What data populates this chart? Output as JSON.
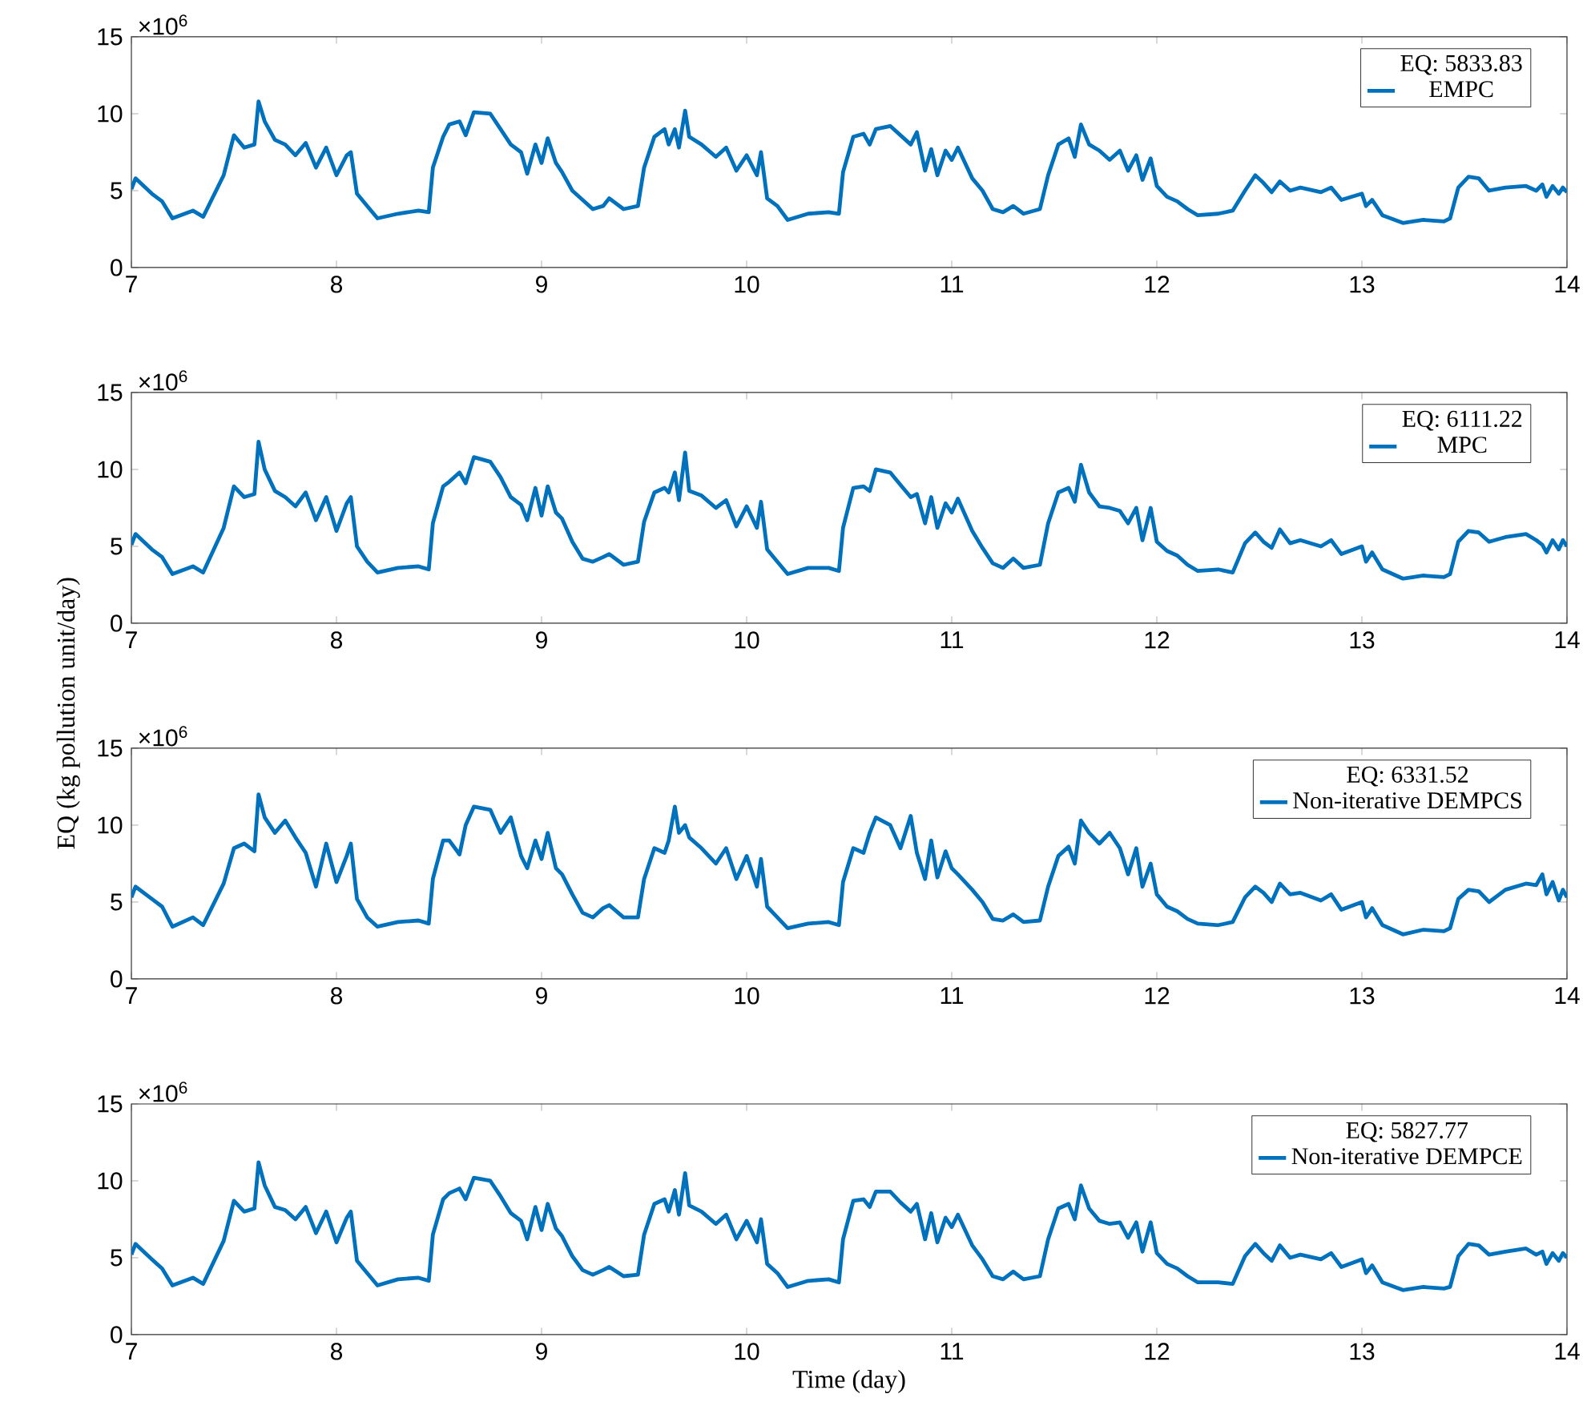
{
  "chart_data": [
    {
      "type": "line",
      "legend": "top right",
      "legend_title": "EQ: 5833.83",
      "annotations": [
        "×10$^{6}$"
      ],
      "xlim": [
        7,
        14
      ],
      "ylim": [
        0,
        15
      ],
      "xticks": [
        7,
        8,
        9,
        10,
        11,
        12,
        13,
        14
      ],
      "yticks": [
        0,
        5,
        10,
        15
      ],
      "x": [
        7.0,
        7.02,
        7.1,
        7.15,
        7.2,
        7.3,
        7.35,
        7.45,
        7.5,
        7.55,
        7.6,
        7.62,
        7.65,
        7.7,
        7.75,
        7.8,
        7.85,
        7.9,
        7.95,
        8.0,
        8.05,
        8.07,
        8.1,
        8.15,
        8.2,
        8.3,
        8.4,
        8.45,
        8.47,
        8.52,
        8.55,
        8.6,
        8.63,
        8.67,
        8.75,
        8.8,
        8.85,
        8.9,
        8.93,
        8.97,
        9.0,
        9.03,
        9.07,
        9.1,
        9.15,
        9.2,
        9.25,
        9.3,
        9.33,
        9.4,
        9.47,
        9.5,
        9.55,
        9.6,
        9.62,
        9.65,
        9.67,
        9.7,
        9.72,
        9.78,
        9.85,
        9.9,
        9.95,
        10.0,
        10.05,
        10.07,
        10.1,
        10.15,
        10.2,
        10.3,
        10.4,
        10.45,
        10.47,
        10.52,
        10.57,
        10.6,
        10.63,
        10.7,
        10.75,
        10.8,
        10.83,
        10.87,
        10.9,
        10.93,
        10.97,
        11.0,
        11.03,
        11.1,
        11.15,
        11.2,
        11.25,
        11.3,
        11.35,
        11.43,
        11.47,
        11.52,
        11.57,
        11.6,
        11.63,
        11.67,
        11.72,
        11.77,
        11.82,
        11.86,
        11.9,
        11.93,
        11.97,
        12.0,
        12.05,
        12.1,
        12.15,
        12.2,
        12.3,
        12.37,
        12.43,
        12.48,
        12.52,
        12.56,
        12.6,
        12.65,
        12.7,
        12.8,
        12.85,
        12.9,
        13.0,
        13.02,
        13.05,
        13.1,
        13.2,
        13.3,
        13.4,
        13.43,
        13.47,
        13.52,
        13.57,
        13.62,
        13.7,
        13.8,
        13.85,
        13.88,
        13.9,
        13.93,
        13.96,
        13.98,
        14.0
      ],
      "series": [
        {
          "name": "EMPC",
          "color": "#0072bd",
          "values": [
            5.1,
            5.8,
            4.8,
            4.3,
            3.2,
            3.7,
            3.3,
            6.0,
            8.6,
            7.8,
            8.0,
            10.8,
            9.5,
            8.3,
            8.0,
            7.3,
            8.1,
            6.5,
            7.8,
            6.0,
            7.3,
            7.5,
            4.8,
            4.0,
            3.2,
            3.5,
            3.7,
            3.6,
            6.5,
            8.5,
            9.3,
            9.5,
            8.6,
            10.1,
            10.0,
            9.0,
            8.0,
            7.5,
            6.1,
            8.0,
            6.8,
            8.4,
            6.8,
            6.2,
            5.0,
            4.4,
            3.8,
            4.0,
            4.5,
            3.8,
            4.0,
            6.5,
            8.5,
            9.0,
            8.0,
            9.0,
            7.8,
            10.2,
            8.5,
            8.0,
            7.2,
            7.8,
            6.3,
            7.3,
            6.0,
            7.5,
            4.5,
            4.0,
            3.1,
            3.5,
            3.6,
            3.5,
            6.2,
            8.5,
            8.7,
            8.0,
            9.0,
            9.2,
            8.6,
            8.0,
            8.8,
            6.3,
            7.7,
            6.0,
            7.6,
            7.0,
            7.8,
            5.8,
            5.0,
            3.8,
            3.6,
            4.0,
            3.5,
            3.8,
            6.0,
            8.0,
            8.4,
            7.2,
            9.3,
            8.0,
            7.6,
            7.0,
            7.6,
            6.3,
            7.3,
            5.7,
            7.1,
            5.3,
            4.6,
            4.3,
            3.8,
            3.4,
            3.5,
            3.7,
            5.0,
            6.0,
            5.5,
            4.9,
            5.6,
            5.0,
            5.2,
            4.9,
            5.2,
            4.4,
            4.8,
            4.0,
            4.4,
            3.4,
            2.9,
            3.1,
            3.0,
            3.2,
            5.2,
            5.9,
            5.8,
            5.0,
            5.2,
            5.3,
            5.0,
            5.4,
            4.6,
            5.3,
            4.8,
            5.2,
            4.9
          ]
        }
      ]
    },
    {
      "type": "line",
      "legend": "top right",
      "legend_title": "EQ: 6111.22",
      "annotations": [
        "×10$^{6}$"
      ],
      "ylabel": "EQ (kg pollution unit/day)",
      "xlim": [
        7,
        14
      ],
      "ylim": [
        0,
        15
      ],
      "xticks": [
        7,
        8,
        9,
        10,
        11,
        12,
        13,
        14
      ],
      "yticks": [
        0,
        5,
        10,
        15
      ],
      "x": [
        7.0,
        7.02,
        7.1,
        7.15,
        7.2,
        7.3,
        7.35,
        7.45,
        7.5,
        7.55,
        7.6,
        7.62,
        7.65,
        7.7,
        7.75,
        7.8,
        7.85,
        7.9,
        7.95,
        8.0,
        8.05,
        8.07,
        8.1,
        8.15,
        8.2,
        8.3,
        8.4,
        8.45,
        8.47,
        8.52,
        8.55,
        8.6,
        8.63,
        8.67,
        8.75,
        8.8,
        8.85,
        8.9,
        8.93,
        8.97,
        9.0,
        9.03,
        9.07,
        9.1,
        9.15,
        9.2,
        9.25,
        9.3,
        9.33,
        9.4,
        9.47,
        9.5,
        9.55,
        9.6,
        9.62,
        9.65,
        9.67,
        9.7,
        9.72,
        9.78,
        9.85,
        9.9,
        9.95,
        10.0,
        10.05,
        10.07,
        10.1,
        10.15,
        10.2,
        10.3,
        10.4,
        10.45,
        10.47,
        10.52,
        10.57,
        10.6,
        10.63,
        10.7,
        10.75,
        10.8,
        10.83,
        10.87,
        10.9,
        10.93,
        10.97,
        11.0,
        11.03,
        11.1,
        11.15,
        11.2,
        11.25,
        11.3,
        11.35,
        11.43,
        11.47,
        11.52,
        11.57,
        11.6,
        11.63,
        11.67,
        11.72,
        11.77,
        11.82,
        11.86,
        11.9,
        11.93,
        11.97,
        12.0,
        12.05,
        12.1,
        12.15,
        12.2,
        12.3,
        12.37,
        12.43,
        12.48,
        12.52,
        12.56,
        12.6,
        12.65,
        12.7,
        12.8,
        12.85,
        12.9,
        13.0,
        13.02,
        13.05,
        13.1,
        13.2,
        13.3,
        13.4,
        13.43,
        13.47,
        13.52,
        13.57,
        13.62,
        13.7,
        13.8,
        13.85,
        13.88,
        13.9,
        13.93,
        13.96,
        13.98,
        14.0
      ],
      "series": [
        {
          "name": "MPC",
          "color": "#0072bd",
          "values": [
            5.1,
            5.8,
            4.8,
            4.3,
            3.2,
            3.7,
            3.3,
            6.2,
            8.9,
            8.2,
            8.4,
            11.8,
            10.0,
            8.6,
            8.2,
            7.6,
            8.5,
            6.7,
            8.2,
            6.0,
            7.8,
            8.2,
            5.0,
            4.0,
            3.3,
            3.6,
            3.7,
            3.5,
            6.5,
            8.9,
            9.2,
            9.8,
            9.1,
            10.8,
            10.5,
            9.5,
            8.2,
            7.7,
            6.7,
            8.8,
            7.0,
            8.9,
            7.2,
            6.8,
            5.3,
            4.2,
            4.0,
            4.3,
            4.5,
            3.8,
            4.0,
            6.6,
            8.5,
            8.8,
            8.5,
            9.8,
            8.0,
            11.1,
            8.6,
            8.3,
            7.5,
            8.0,
            6.3,
            7.6,
            6.2,
            7.9,
            4.8,
            4.0,
            3.2,
            3.6,
            3.6,
            3.4,
            6.2,
            8.8,
            8.9,
            8.6,
            10.0,
            9.8,
            9.0,
            8.2,
            8.4,
            6.5,
            8.2,
            6.2,
            7.8,
            7.2,
            8.1,
            6.0,
            4.9,
            3.9,
            3.6,
            4.2,
            3.6,
            3.8,
            6.5,
            8.5,
            8.8,
            7.9,
            10.3,
            8.5,
            7.6,
            7.5,
            7.3,
            6.5,
            7.5,
            5.4,
            7.5,
            5.3,
            4.7,
            4.4,
            3.8,
            3.4,
            3.5,
            3.3,
            5.2,
            5.9,
            5.3,
            4.9,
            6.1,
            5.2,
            5.4,
            5.0,
            5.4,
            4.5,
            5.0,
            4.0,
            4.6,
            3.5,
            2.9,
            3.1,
            3.0,
            3.2,
            5.3,
            6.0,
            5.9,
            5.3,
            5.6,
            5.8,
            5.4,
            5.1,
            4.6,
            5.4,
            4.8,
            5.4,
            5.0
          ]
        }
      ]
    },
    {
      "type": "line",
      "legend": "top right",
      "legend_title": "EQ: 6331.52",
      "annotations": [
        "×10$^{6}$"
      ],
      "xlim": [
        7,
        14
      ],
      "ylim": [
        0,
        15
      ],
      "xticks": [
        7,
        8,
        9,
        10,
        11,
        12,
        13,
        14
      ],
      "yticks": [
        0,
        5,
        10,
        15
      ],
      "x": [
        7.0,
        7.02,
        7.1,
        7.15,
        7.2,
        7.3,
        7.35,
        7.45,
        7.5,
        7.55,
        7.6,
        7.62,
        7.65,
        7.7,
        7.75,
        7.8,
        7.85,
        7.9,
        7.95,
        8.0,
        8.05,
        8.07,
        8.1,
        8.15,
        8.2,
        8.3,
        8.4,
        8.45,
        8.47,
        8.52,
        8.55,
        8.6,
        8.63,
        8.67,
        8.75,
        8.8,
        8.85,
        8.9,
        8.93,
        8.97,
        9.0,
        9.03,
        9.07,
        9.1,
        9.15,
        9.2,
        9.25,
        9.3,
        9.33,
        9.4,
        9.47,
        9.5,
        9.55,
        9.6,
        9.62,
        9.65,
        9.67,
        9.7,
        9.72,
        9.78,
        9.85,
        9.9,
        9.95,
        10.0,
        10.05,
        10.07,
        10.1,
        10.15,
        10.2,
        10.3,
        10.4,
        10.45,
        10.47,
        10.52,
        10.57,
        10.6,
        10.63,
        10.7,
        10.75,
        10.8,
        10.83,
        10.87,
        10.9,
        10.93,
        10.97,
        11.0,
        11.03,
        11.1,
        11.15,
        11.2,
        11.25,
        11.3,
        11.35,
        11.43,
        11.47,
        11.52,
        11.57,
        11.6,
        11.63,
        11.67,
        11.72,
        11.77,
        11.82,
        11.86,
        11.9,
        11.93,
        11.97,
        12.0,
        12.05,
        12.1,
        12.15,
        12.2,
        12.3,
        12.37,
        12.43,
        12.48,
        12.52,
        12.56,
        12.6,
        12.65,
        12.7,
        12.8,
        12.85,
        12.9,
        13.0,
        13.02,
        13.05,
        13.1,
        13.2,
        13.3,
        13.4,
        13.43,
        13.47,
        13.52,
        13.57,
        13.62,
        13.7,
        13.8,
        13.85,
        13.88,
        13.9,
        13.93,
        13.96,
        13.98,
        14.0
      ],
      "series": [
        {
          "name": "Non-iterative DEMPCS",
          "color": "#0072bd",
          "values": [
            5.3,
            6.0,
            5.2,
            4.7,
            3.4,
            4.0,
            3.5,
            6.2,
            8.5,
            8.8,
            8.3,
            12.0,
            10.5,
            9.5,
            10.3,
            9.2,
            8.2,
            6.0,
            8.8,
            6.3,
            8.0,
            8.8,
            5.2,
            4.0,
            3.4,
            3.7,
            3.8,
            3.6,
            6.5,
            9.0,
            9.0,
            8.1,
            10.0,
            11.2,
            11.0,
            9.5,
            10.5,
            8.0,
            7.2,
            9.0,
            7.8,
            9.5,
            7.2,
            6.8,
            5.5,
            4.3,
            4.0,
            4.6,
            4.8,
            4.0,
            4.0,
            6.5,
            8.5,
            8.2,
            9.0,
            11.2,
            9.5,
            10.0,
            9.2,
            8.5,
            7.5,
            8.5,
            6.5,
            8.0,
            6.0,
            7.8,
            4.7,
            4.0,
            3.3,
            3.6,
            3.7,
            3.5,
            6.3,
            8.5,
            8.2,
            9.5,
            10.5,
            10.0,
            8.5,
            10.6,
            8.2,
            6.5,
            9.0,
            6.6,
            8.3,
            7.2,
            6.8,
            5.8,
            5.0,
            3.9,
            3.8,
            4.2,
            3.7,
            3.8,
            6.0,
            8.0,
            8.6,
            7.5,
            10.3,
            9.5,
            8.8,
            9.5,
            8.5,
            6.8,
            8.5,
            6.0,
            7.5,
            5.5,
            4.7,
            4.4,
            3.9,
            3.6,
            3.5,
            3.7,
            5.3,
            6.0,
            5.6,
            5.0,
            6.2,
            5.5,
            5.6,
            5.1,
            5.5,
            4.5,
            5.0,
            4.0,
            4.6,
            3.5,
            2.9,
            3.2,
            3.1,
            3.3,
            5.2,
            5.8,
            5.7,
            5.0,
            5.8,
            6.2,
            6.1,
            6.8,
            5.5,
            6.3,
            5.1,
            5.8,
            5.3
          ]
        }
      ]
    },
    {
      "type": "line",
      "legend": "top right",
      "legend_title": "EQ: 5827.77",
      "annotations": [
        "×10$^{6}$"
      ],
      "xlabel": "Time (day)",
      "xlim": [
        7,
        14
      ],
      "ylim": [
        0,
        15
      ],
      "xticks": [
        7,
        8,
        9,
        10,
        11,
        12,
        13,
        14
      ],
      "yticks": [
        0,
        5,
        10,
        15
      ],
      "x": [
        7.0,
        7.02,
        7.1,
        7.15,
        7.2,
        7.3,
        7.35,
        7.45,
        7.5,
        7.55,
        7.6,
        7.62,
        7.65,
        7.7,
        7.75,
        7.8,
        7.85,
        7.9,
        7.95,
        8.0,
        8.05,
        8.07,
        8.1,
        8.15,
        8.2,
        8.3,
        8.4,
        8.45,
        8.47,
        8.52,
        8.55,
        8.6,
        8.63,
        8.67,
        8.75,
        8.8,
        8.85,
        8.9,
        8.93,
        8.97,
        9.0,
        9.03,
        9.07,
        9.1,
        9.15,
        9.2,
        9.25,
        9.3,
        9.33,
        9.4,
        9.47,
        9.5,
        9.55,
        9.6,
        9.62,
        9.65,
        9.67,
        9.7,
        9.72,
        9.78,
        9.85,
        9.9,
        9.95,
        10.0,
        10.05,
        10.07,
        10.1,
        10.15,
        10.2,
        10.3,
        10.4,
        10.45,
        10.47,
        10.52,
        10.57,
        10.6,
        10.63,
        10.7,
        10.75,
        10.8,
        10.83,
        10.87,
        10.9,
        10.93,
        10.97,
        11.0,
        11.03,
        11.1,
        11.15,
        11.2,
        11.25,
        11.3,
        11.35,
        11.43,
        11.47,
        11.52,
        11.57,
        11.6,
        11.63,
        11.67,
        11.72,
        11.77,
        11.82,
        11.86,
        11.9,
        11.93,
        11.97,
        12.0,
        12.05,
        12.1,
        12.15,
        12.2,
        12.3,
        12.37,
        12.43,
        12.48,
        12.52,
        12.56,
        12.6,
        12.65,
        12.7,
        12.8,
        12.85,
        12.9,
        13.0,
        13.02,
        13.05,
        13.1,
        13.2,
        13.3,
        13.4,
        13.43,
        13.47,
        13.52,
        13.57,
        13.62,
        13.7,
        13.8,
        13.85,
        13.88,
        13.9,
        13.93,
        13.96,
        13.98,
        14.0
      ],
      "series": [
        {
          "name": "Non-iterative DEMPCE",
          "color": "#0072bd",
          "values": [
            5.2,
            5.9,
            4.9,
            4.3,
            3.2,
            3.7,
            3.3,
            6.1,
            8.7,
            8.0,
            8.2,
            11.2,
            9.7,
            8.3,
            8.1,
            7.5,
            8.3,
            6.6,
            8.0,
            6.0,
            7.6,
            8.0,
            4.8,
            4.0,
            3.2,
            3.6,
            3.7,
            3.5,
            6.5,
            8.8,
            9.2,
            9.5,
            8.8,
            10.2,
            10.0,
            9.0,
            7.9,
            7.4,
            6.2,
            8.3,
            6.8,
            8.5,
            6.9,
            6.4,
            5.1,
            4.2,
            3.9,
            4.2,
            4.4,
            3.8,
            3.9,
            6.5,
            8.5,
            8.8,
            8.0,
            9.4,
            7.8,
            10.5,
            8.4,
            8.0,
            7.2,
            7.8,
            6.2,
            7.4,
            6.0,
            7.5,
            4.6,
            4.0,
            3.1,
            3.5,
            3.6,
            3.4,
            6.2,
            8.7,
            8.8,
            8.3,
            9.3,
            9.3,
            8.6,
            8.0,
            8.5,
            6.2,
            7.9,
            6.0,
            7.6,
            7.0,
            7.8,
            5.8,
            4.9,
            3.8,
            3.6,
            4.1,
            3.6,
            3.8,
            6.2,
            8.2,
            8.5,
            7.5,
            9.7,
            8.2,
            7.4,
            7.2,
            7.3,
            6.3,
            7.3,
            5.4,
            7.3,
            5.3,
            4.6,
            4.3,
            3.8,
            3.4,
            3.4,
            3.3,
            5.1,
            5.9,
            5.3,
            4.8,
            5.8,
            5.0,
            5.2,
            4.9,
            5.3,
            4.4,
            4.9,
            4.0,
            4.5,
            3.4,
            2.9,
            3.1,
            3.0,
            3.1,
            5.1,
            5.9,
            5.8,
            5.2,
            5.4,
            5.6,
            5.2,
            5.4,
            4.6,
            5.3,
            4.8,
            5.3,
            5.0
          ]
        }
      ]
    }
  ]
}
